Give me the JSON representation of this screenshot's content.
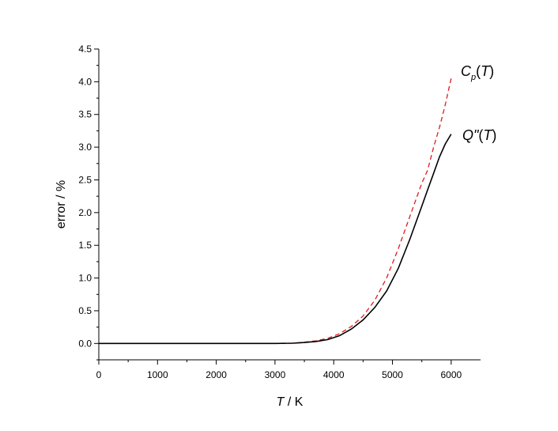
{
  "chart_data": {
    "type": "line",
    "xlabel_italic": "T",
    "xlabel_rest": " / K",
    "ylabel": "error / %",
    "xlim": [
      0,
      6500
    ],
    "ylim": [
      -0.25,
      4.5
    ],
    "xticks": [
      0,
      1000,
      2000,
      3000,
      4000,
      5000,
      6000
    ],
    "xtick_labels": [
      "0",
      "1000",
      "2000",
      "3000",
      "4000",
      "5000",
      "6000"
    ],
    "yticks": [
      0.0,
      0.5,
      1.0,
      1.5,
      2.0,
      2.5,
      3.0,
      3.5,
      4.0,
      4.5
    ],
    "ytick_labels": [
      "0.0",
      "0.5",
      "1.0",
      "1.5",
      "2.0",
      "2.5",
      "3.0",
      "3.5",
      "4.0",
      "4.5"
    ],
    "grid": false,
    "series": [
      {
        "label_main": "C",
        "label_sub": "p",
        "label_arg": "(T)",
        "color": "#e31a1c",
        "dash": "dashed",
        "x": [
          0,
          1000,
          2000,
          3000,
          3300,
          3500,
          3700,
          3900,
          4100,
          4300,
          4500,
          4700,
          4900,
          5100,
          5300,
          5500,
          5600,
          5700,
          5800,
          5900,
          6000
        ],
        "y": [
          0,
          0,
          0,
          0,
          0.005,
          0.02,
          0.04,
          0.08,
          0.15,
          0.26,
          0.42,
          0.66,
          1.0,
          1.45,
          1.95,
          2.45,
          2.65,
          3.0,
          3.3,
          3.65,
          4.05
        ]
      },
      {
        "label_main": "Q\"",
        "label_arg": "(T)",
        "color": "#000000",
        "dash": "solid",
        "x": [
          0,
          1000,
          2000,
          3000,
          3300,
          3500,
          3700,
          3900,
          4100,
          4300,
          4500,
          4700,
          4900,
          5100,
          5300,
          5500,
          5600,
          5700,
          5800,
          5900,
          6000
        ],
        "y": [
          0,
          0,
          0,
          0,
          0.004,
          0.015,
          0.03,
          0.06,
          0.12,
          0.22,
          0.36,
          0.55,
          0.8,
          1.15,
          1.6,
          2.1,
          2.35,
          2.6,
          2.85,
          3.05,
          3.2
        ]
      }
    ]
  }
}
